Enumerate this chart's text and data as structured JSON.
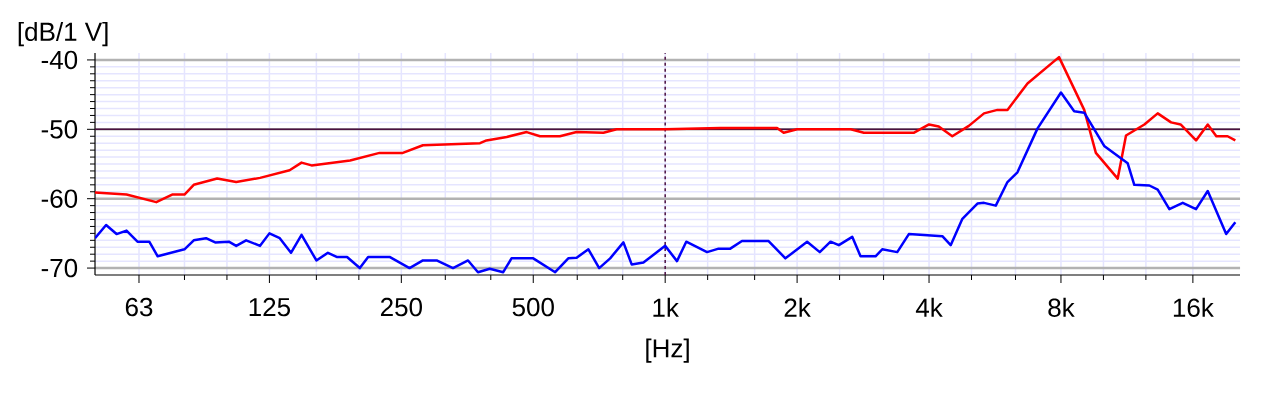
{
  "chart_data": {
    "type": "line",
    "xlabel": "[Hz]",
    "ylabel": "[dB/1 V]",
    "log": "x",
    "grid": true,
    "marker": "none",
    "line_style": "solid",
    "xlim": [
      50,
      20500
    ],
    "ylim": [
      -71,
      -39
    ],
    "xticks": [
      63,
      {
        "value": 80,
        "label": null
      },
      {
        "value": 100,
        "label": null
      },
      125,
      {
        "value": 160,
        "label": null
      },
      {
        "value": 200,
        "label": null
      },
      250,
      {
        "value": 315,
        "label": null
      },
      {
        "value": 400,
        "label": null
      },
      500,
      {
        "value": 630,
        "label": null
      },
      {
        "value": 800,
        "label": null
      },
      {
        "value": 1000,
        "label": "1k"
      },
      {
        "value": 1250,
        "label": null
      },
      {
        "value": 1600,
        "label": null
      },
      {
        "value": 2000,
        "label": "2k"
      },
      {
        "value": 2500,
        "label": null
      },
      {
        "value": 3150,
        "label": null
      },
      {
        "value": 4000,
        "label": "4k"
      },
      {
        "value": 5000,
        "label": null
      },
      {
        "value": 6300,
        "label": null
      },
      {
        "value": 8000,
        "label": "8k"
      },
      {
        "value": 10000,
        "label": null
      },
      {
        "value": 12500,
        "label": null
      },
      {
        "value": 16000,
        "label": "16k"
      }
    ],
    "yticks": [
      -40,
      {
        "value": -41,
        "label": null
      },
      {
        "value": -42,
        "label": null
      },
      {
        "value": -43,
        "label": null
      },
      {
        "value": -44,
        "label": null
      },
      {
        "value": -45,
        "label": null
      },
      {
        "value": -46,
        "label": null
      },
      {
        "value": -47,
        "label": null
      },
      {
        "value": -48,
        "label": null
      },
      {
        "value": -49,
        "label": null
      },
      -50,
      {
        "value": -51,
        "label": null
      },
      {
        "value": -52,
        "label": null
      },
      {
        "value": -53,
        "label": null
      },
      {
        "value": -54,
        "label": null
      },
      {
        "value": -55,
        "label": null
      },
      {
        "value": -56,
        "label": null
      },
      {
        "value": -57,
        "label": null
      },
      {
        "value": -58,
        "label": null
      },
      {
        "value": -59,
        "label": null
      },
      -60,
      {
        "value": -61,
        "label": null
      },
      {
        "value": -62,
        "label": null
      },
      {
        "value": -63,
        "label": null
      },
      {
        "value": -64,
        "label": null
      },
      {
        "value": -65,
        "label": null
      },
      {
        "value": -66,
        "label": null
      },
      {
        "value": -67,
        "label": null
      },
      {
        "value": -68,
        "label": null
      },
      {
        "value": -69,
        "label": null
      },
      -70
    ],
    "ref_lines": [
      {
        "axis": "x",
        "value": 1000,
        "color": "#4b1040",
        "line_style": "dashed"
      },
      {
        "axis": "y",
        "value": -50,
        "color": "#4b1040",
        "line_style": "solid"
      }
    ],
    "series": [
      {
        "color": "#ff0000",
        "x": [
          50,
          59,
          69,
          75,
          80,
          84,
          95,
          105,
          119,
          139,
          148,
          156,
          191,
          223,
          252,
          280,
          378,
          391,
          435,
          483,
          518,
          575,
          628,
          723,
          775,
          1000,
          1336,
          1800,
          1864,
          2000,
          2650,
          2840,
          3690,
          4000,
          4210,
          4520,
          4930,
          5340,
          5730,
          6040,
          6710,
          7920,
          9040,
          9610,
          10780,
          11260,
          12400,
          13300,
          14270,
          15000,
          16270,
          17300,
          18100,
          19200,
          20000
        ],
        "values": [
          -59.1,
          -59.4,
          -60.5,
          -59.4,
          -59.4,
          -58.0,
          -57.1,
          -57.6,
          -57.0,
          -55.9,
          -54.8,
          -55.2,
          -54.5,
          -53.4,
          -53.4,
          -52.3,
          -52.0,
          -51.6,
          -51.1,
          -50.4,
          -51.0,
          -51.0,
          -50.4,
          -50.5,
          -50.0,
          -50.0,
          -49.8,
          -49.8,
          -50.5,
          -50.0,
          -50.0,
          -50.5,
          -50.5,
          -49.3,
          -49.6,
          -51.0,
          -49.5,
          -47.7,
          -47.2,
          -47.2,
          -43.4,
          -39.6,
          -47.2,
          -53.4,
          -57.1,
          -50.9,
          -49.3,
          -47.7,
          -49.0,
          -49.3,
          -51.6,
          -49.3,
          -51.0,
          -51.0,
          -51.6
        ]
      },
      {
        "color": "#0000ff",
        "x": [
          50,
          53,
          56,
          59,
          62.5,
          66.5,
          69.5,
          80,
          84,
          89.6,
          94,
          101,
          105,
          110.6,
          119,
          125,
          132,
          140,
          148,
          160,
          170,
          178,
          188,
          201,
          210,
          235,
          261,
          280,
          301,
          328,
          355,
          374,
          398,
          427,
          446,
          500,
          561,
          601,
          628,
          668,
          707,
          749,
          803,
          839,
          892,
          1000,
          1064,
          1117,
          1246,
          1324,
          1408,
          1497,
          1722,
          1881,
          2108,
          2253,
          2384,
          2490,
          2672,
          2791,
          3020,
          3128,
          3385,
          3598,
          4290,
          4482,
          4766,
          5158,
          5340,
          5680,
          6040,
          6365,
          7070,
          8000,
          8575,
          9040,
          10040,
          11360,
          11760,
          12730,
          13300,
          14140,
          15170,
          16270,
          17300,
          19060,
          20000
        ],
        "values": [
          -65.7,
          -63.8,
          -65.1,
          -64.6,
          -66.2,
          -66.2,
          -68.3,
          -67.3,
          -66.0,
          -65.7,
          -66.3,
          -66.2,
          -66.8,
          -66.0,
          -66.8,
          -65.0,
          -65.7,
          -67.8,
          -65.2,
          -68.9,
          -67.8,
          -68.4,
          -68.4,
          -70.0,
          -68.4,
          -68.4,
          -70.0,
          -68.9,
          -68.9,
          -70.0,
          -68.9,
          -70.6,
          -70.1,
          -70.6,
          -68.6,
          -68.6,
          -70.6,
          -68.6,
          -68.5,
          -67.3,
          -70.0,
          -68.6,
          -66.3,
          -69.5,
          -69.2,
          -66.8,
          -69.0,
          -66.2,
          -67.7,
          -67.2,
          -67.2,
          -66.1,
          -66.1,
          -68.6,
          -66.2,
          -67.7,
          -66.2,
          -66.7,
          -65.5,
          -68.3,
          -68.3,
          -67.3,
          -67.7,
          -65.1,
          -65.4,
          -66.7,
          -62.9,
          -60.7,
          -60.6,
          -61.0,
          -57.6,
          -56.2,
          -49.9,
          -44.7,
          -47.4,
          -47.6,
          -52.4,
          -54.9,
          -58.0,
          -58.1,
          -58.7,
          -61.5,
          -60.6,
          -61.5,
          -58.9,
          -65.1,
          -63.4
        ]
      }
    ]
  }
}
